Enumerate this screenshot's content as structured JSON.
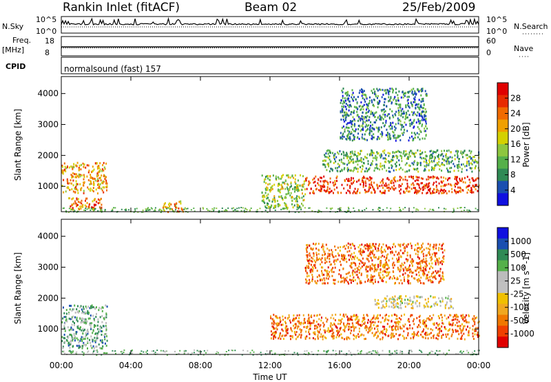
{
  "header": {
    "site": "Rankin Inlet (fitACF)",
    "beam": "Beam 02",
    "date": "25/Feb/2009"
  },
  "aux": {
    "nsky_label": "N.Sky",
    "nsky_ticks": [
      "10^5",
      "10^0"
    ],
    "nsearch_label": "N.Search",
    "nsearch_ticks": [
      "10^5",
      "10^0"
    ],
    "freq_label": "Freq.",
    "freq_unit": "[MHz]",
    "freq_ticks": [
      "18",
      "8"
    ],
    "nave_label": "Nave",
    "nave_ticks": [
      "60",
      "0"
    ],
    "cpid_label": "CPID",
    "cpid_text": "normalsound (fast) 157"
  },
  "colors": {
    "power": [
      "#1010e0",
      "#1a4fb0",
      "#2f8a55",
      "#55b04a",
      "#8dc63f",
      "#d4d000",
      "#f0a000",
      "#f06a00",
      "#e82a00",
      "#e00000"
    ],
    "velocity": [
      "#e00000",
      "#f04000",
      "#f07800",
      "#f0a820",
      "#f0c000",
      "#c0c0c0",
      "#bcbcbc",
      "#55b04a",
      "#2f8a55",
      "#1a4fb0",
      "#1010e0"
    ]
  },
  "chart_data": [
    {
      "type": "heatmap",
      "panel": "power",
      "xlabel": "",
      "ylabel": "Slant Range [km]",
      "ylim": [
        180,
        4550
      ],
      "y_ticks": [
        1000,
        2000,
        3000,
        4000
      ],
      "cbar_label": "Power [dB]",
      "cbar_range": [
        0,
        32
      ],
      "cbar_ticks": [
        4,
        8,
        12,
        16,
        20,
        24,
        28
      ],
      "echo_regions": [
        {
          "t": [
            0,
            2.6
          ],
          "r": [
            800,
            1800
          ],
          "value": 20
        },
        {
          "t": [
            0.4,
            2.4
          ],
          "r": [
            250,
            650
          ],
          "value": 26
        },
        {
          "t": [
            5.8,
            7.0
          ],
          "r": [
            200,
            550
          ],
          "value": 22
        },
        {
          "t": [
            11.5,
            14.0
          ],
          "r": [
            300,
            1400
          ],
          "value": 14
        },
        {
          "t": [
            14.0,
            24.0
          ],
          "r": [
            800,
            1350
          ],
          "value": 27
        },
        {
          "t": [
            15.0,
            24.0
          ],
          "r": [
            1500,
            2200
          ],
          "value": 10
        },
        {
          "t": [
            16.0,
            21.0
          ],
          "r": [
            2500,
            4200
          ],
          "value": 8
        }
      ]
    },
    {
      "type": "heatmap",
      "panel": "velocity",
      "xlabel": "Time UT",
      "ylabel": "Slant Range [km]",
      "ylim": [
        180,
        4550
      ],
      "y_ticks": [
        1000,
        2000,
        3000,
        4000
      ],
      "x_ticks": [
        "00:00",
        "04:00",
        "08:00",
        "12:00",
        "16:00",
        "20:00",
        "00:00"
      ],
      "xlim_hours": [
        0,
        24
      ],
      "cbar_label": "Velocity [m s^-1]",
      "cbar_ticks": [
        "1000",
        "500",
        "100",
        "25",
        "-25",
        "-100",
        "-500",
        "-1000"
      ],
      "echo_regions": [
        {
          "t": [
            0,
            2.6
          ],
          "r": [
            400,
            1800
          ],
          "value": 100
        },
        {
          "t": [
            12.0,
            24.0
          ],
          "r": [
            700,
            1500
          ],
          "value": -300
        },
        {
          "t": [
            18.0,
            22.5
          ],
          "r": [
            1700,
            2100
          ],
          "value": 0
        },
        {
          "t": [
            14.0,
            22.0
          ],
          "r": [
            2500,
            3800
          ],
          "value": -150
        }
      ]
    }
  ]
}
